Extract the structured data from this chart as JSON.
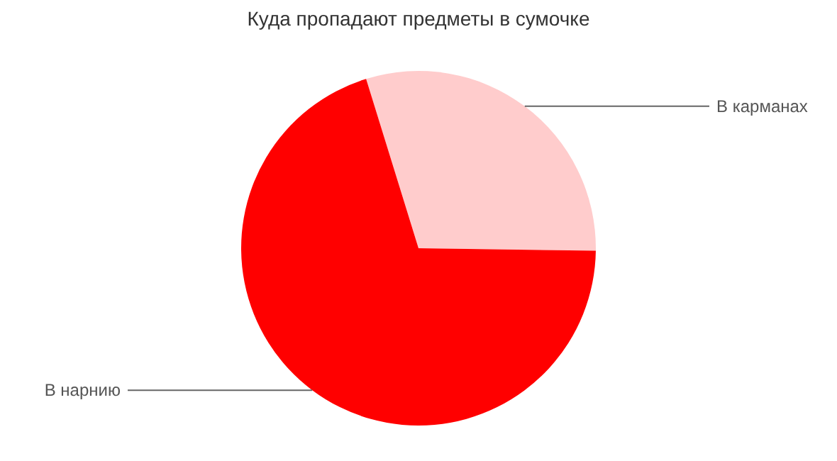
{
  "chart_data": {
    "type": "pie",
    "title": "Куда пропадают предметы в сумочке",
    "categories": [
      "В карманах",
      "В нарнию"
    ],
    "values": [
      30,
      70
    ],
    "colors": [
      "#ffcccc",
      "#ff0000"
    ]
  }
}
